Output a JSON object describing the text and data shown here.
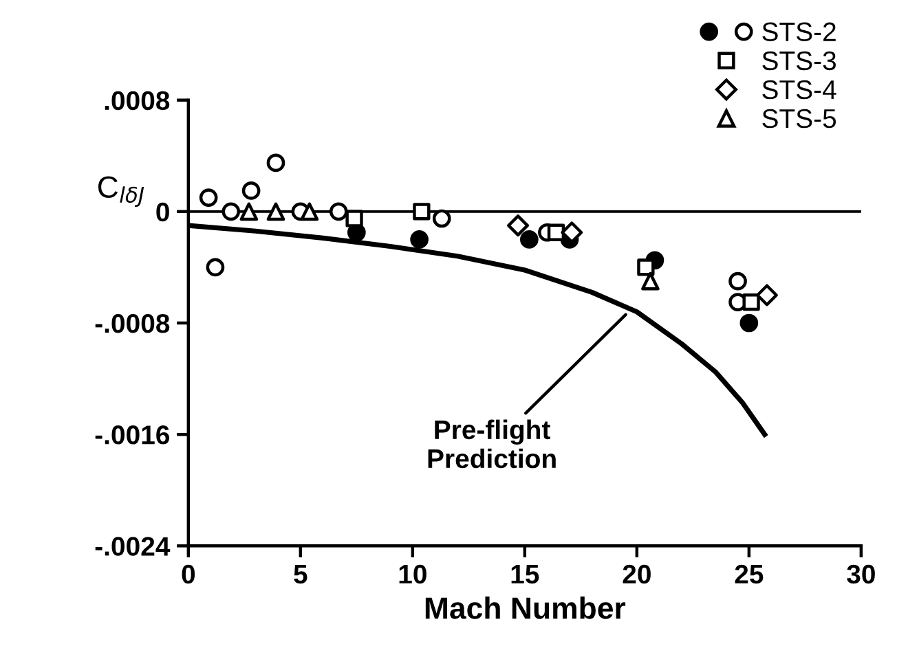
{
  "chart_data": {
    "type": "scatter",
    "xlabel": "Mach Number",
    "ylabel": "C$_{lδJ}$",
    "xlim": [
      0,
      30
    ],
    "xticks": [
      0,
      5,
      10,
      15,
      20,
      25,
      30
    ],
    "ylim": [
      -0.0024,
      0.0008
    ],
    "yticks": [
      {
        "value": 0.0008,
        "label": ".0008"
      },
      {
        "value": 0,
        "label": "0"
      },
      {
        "value": -0.0008,
        "label": "-.0008"
      },
      {
        "value": -0.0016,
        "label": "-.0016"
      },
      {
        "value": -0.0024,
        "label": "-.0024"
      }
    ],
    "grid": false,
    "legend": "top right",
    "series": [
      {
        "color": "#000000",
        "marker": "circle",
        "x": [
          7.5,
          10.3,
          15.2,
          17.0,
          20.8,
          25.0
        ],
        "values": [
          -0.00015,
          -0.0002,
          -0.0002,
          -0.0002,
          -0.00035,
          -0.0008
        ]
      },
      {
        "name": "STS-2",
        "color": "#ffffff",
        "marker": "circle",
        "x": [
          0.9,
          1.2,
          1.9,
          2.8,
          3.9,
          5.0,
          6.7,
          11.3,
          16.0,
          24.5,
          24.5
        ],
        "values": [
          0.0001,
          -0.0004,
          0.0,
          0.00015,
          0.00035,
          0.0,
          0.0,
          -5e-05,
          -0.00015,
          -0.0005,
          -0.00065
        ]
      },
      {
        "name": "STS-3",
        "color": "#ffffff",
        "marker": "square",
        "x": [
          7.4,
          10.4,
          16.4,
          20.4,
          25.1
        ],
        "values": [
          -5e-05,
          0.0,
          -0.00015,
          -0.0004,
          -0.00065
        ]
      },
      {
        "name": "STS-4",
        "color": "#ffffff",
        "marker": "diamond",
        "x": [
          14.7,
          17.1,
          25.8
        ],
        "values": [
          -0.0001,
          -0.00015,
          -0.0006
        ]
      },
      {
        "name": "STS-5",
        "color": "#ffffff",
        "marker": "triangle",
        "x": [
          2.7,
          3.9,
          5.4,
          20.6
        ],
        "values": [
          0.0,
          0.0,
          0.0,
          -0.0005
        ]
      },
      {
        "type": "line",
        "color": "#000000",
        "x": [
          0,
          3,
          6,
          9,
          12,
          15,
          18,
          20,
          22,
          23.5,
          24.7,
          25.7
        ],
        "values": [
          -0.0001,
          -0.00014,
          -0.00019,
          -0.00025,
          -0.00032,
          -0.00042,
          -0.00058,
          -0.00072,
          -0.00095,
          -0.00115,
          -0.00137,
          -0.0016
        ]
      }
    ],
    "ref_lines": [
      {
        "axis": "y",
        "value": 0,
        "color": "#000000"
      }
    ],
    "annotations": [
      {
        "text": "Pre-flight\nPrediction",
        "x": 19.5,
        "y": -0.00074
      }
    ]
  }
}
